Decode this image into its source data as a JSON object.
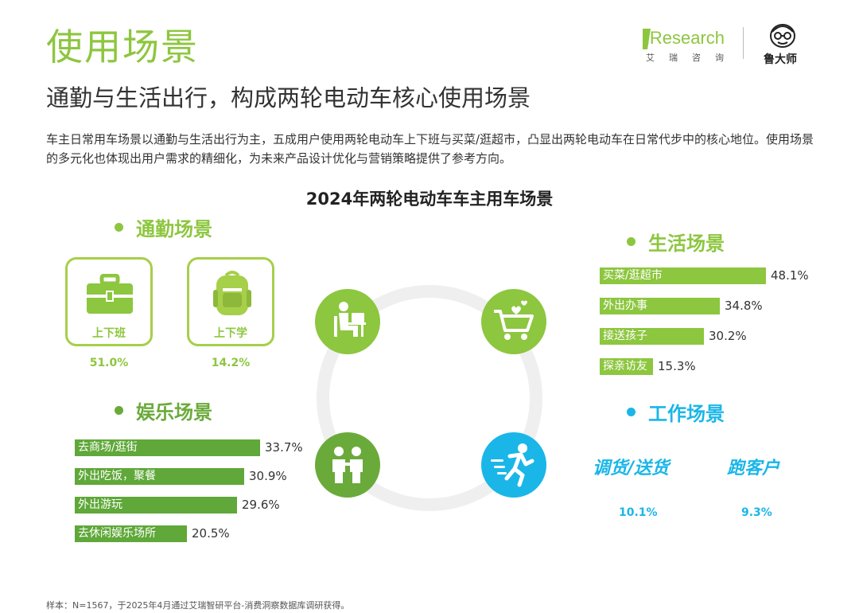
{
  "header": {
    "title": "使用场景",
    "subtitle": "通勤与生活出行，构成两轮电动车核心使用场景",
    "description": "车主日常用车场景以通勤与生活出行为主，五成用户使用两轮电动车上下班与买菜/逛超市，凸显出两轮电动车在日常代步中的核心地位。使用场景的多元化也体现出用户需求的精细化，为未来产品设计优化与营销策略提供了参考方向。"
  },
  "logos": {
    "iresearch": "iResearch",
    "iresearch_cn": "艾瑞咨询",
    "ludashi": "鲁大师"
  },
  "chart_data": {
    "type": "bar",
    "title": "2024年两轮电动车车主用车场景",
    "unit": "%",
    "groups": [
      {
        "name": "通勤场景",
        "categories": [
          "上下班",
          "上下学"
        ],
        "values": [
          51.0,
          14.2
        ],
        "labels": [
          "51.0%",
          "14.2%"
        ]
      },
      {
        "name": "生活场景",
        "categories": [
          "买菜/逛超市",
          "外出办事",
          "接送孩子",
          "探亲访友"
        ],
        "values": [
          48.1,
          34.8,
          30.2,
          15.3
        ],
        "labels": [
          "48.1%",
          "34.8%",
          "30.2%",
          "15.3%"
        ]
      },
      {
        "name": "娱乐场景",
        "categories": [
          "去商场/逛街",
          "外出吃饭，聚餐",
          "外出游玩",
          "去休闲娱乐场所"
        ],
        "values": [
          33.7,
          30.9,
          29.6,
          20.5
        ],
        "labels": [
          "33.7%",
          "30.9%",
          "29.6%",
          "20.5%"
        ]
      },
      {
        "name": "工作场景",
        "categories": [
          "调货/送货",
          "跑客户"
        ],
        "values": [
          10.1,
          9.3
        ],
        "labels": [
          "10.1%",
          "9.3%"
        ]
      }
    ],
    "colors": {
      "commute": "#8dc63f",
      "life": "#8dc63f",
      "entertainment": "#5fa839",
      "work": "#1ab6e8"
    }
  },
  "icons": {
    "commute": "person-at-desk-icon",
    "life": "shopping-cart-icon",
    "entertainment": "two-people-icon",
    "work": "running-person-icon",
    "work_commute": "briefcase-icon",
    "school_commute": "backpack-icon"
  },
  "footnote": "样本：N=1567，于2025年4月通过艾瑞智研平台-消费洞察数据库调研获得。"
}
